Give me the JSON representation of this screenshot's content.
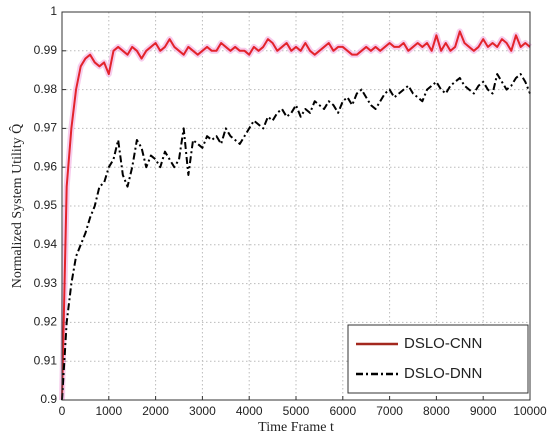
{
  "chart_data": {
    "type": "line",
    "xlabel": "Time Frame t",
    "ylabel": "Normalized System Utility Q̂",
    "x": [
      0,
      100,
      200,
      300,
      400,
      500,
      600,
      700,
      800,
      900,
      1000,
      1100,
      1200,
      1300,
      1400,
      1500,
      1600,
      1700,
      1800,
      1900,
      2000,
      2100,
      2200,
      2300,
      2400,
      2500,
      2600,
      2700,
      2800,
      2900,
      3000,
      3100,
      3200,
      3300,
      3400,
      3500,
      3600,
      3700,
      3800,
      3900,
      4000,
      4100,
      4200,
      4300,
      4400,
      4500,
      4600,
      4700,
      4800,
      4900,
      5000,
      5100,
      5200,
      5300,
      5400,
      5500,
      5600,
      5700,
      5800,
      5900,
      6000,
      6100,
      6200,
      6300,
      6400,
      6500,
      6600,
      6700,
      6800,
      6900,
      7000,
      7100,
      7200,
      7300,
      7400,
      7500,
      7600,
      7700,
      7800,
      7900,
      8000,
      8100,
      8200,
      8300,
      8400,
      8500,
      8600,
      8700,
      8800,
      8900,
      9000,
      9100,
      9200,
      9300,
      9400,
      9500,
      9600,
      9700,
      9800,
      9900,
      10000
    ],
    "series": [
      {
        "name": "DSLO-CNN",
        "color": "#e3232c",
        "legend_color": "#a3281e",
        "dash": false,
        "values": [
          0.9,
          0.955,
          0.97,
          0.98,
          0.986,
          0.988,
          0.989,
          0.987,
          0.986,
          0.987,
          0.984,
          0.99,
          0.991,
          0.99,
          0.989,
          0.991,
          0.99,
          0.988,
          0.99,
          0.991,
          0.992,
          0.99,
          0.991,
          0.993,
          0.991,
          0.99,
          0.989,
          0.991,
          0.99,
          0.989,
          0.99,
          0.991,
          0.99,
          0.99,
          0.992,
          0.991,
          0.99,
          0.991,
          0.99,
          0.99,
          0.989,
          0.991,
          0.99,
          0.991,
          0.993,
          0.992,
          0.99,
          0.991,
          0.992,
          0.99,
          0.991,
          0.99,
          0.992,
          0.99,
          0.989,
          0.99,
          0.991,
          0.992,
          0.99,
          0.991,
          0.991,
          0.99,
          0.989,
          0.989,
          0.99,
          0.991,
          0.99,
          0.991,
          0.99,
          0.991,
          0.992,
          0.991,
          0.991,
          0.992,
          0.99,
          0.991,
          0.992,
          0.991,
          0.992,
          0.99,
          0.994,
          0.99,
          0.992,
          0.99,
          0.991,
          0.995,
          0.992,
          0.991,
          0.99,
          0.991,
          0.993,
          0.991,
          0.992,
          0.991,
          0.993,
          0.992,
          0.99,
          0.994,
          0.991,
          0.992,
          0.991
        ]
      },
      {
        "name": "DSLO-DNN",
        "color": "#000000",
        "dash": true,
        "values": [
          0.9,
          0.92,
          0.93,
          0.937,
          0.94,
          0.943,
          0.947,
          0.95,
          0.955,
          0.956,
          0.96,
          0.962,
          0.967,
          0.958,
          0.955,
          0.96,
          0.967,
          0.965,
          0.96,
          0.963,
          0.962,
          0.96,
          0.964,
          0.962,
          0.96,
          0.962,
          0.97,
          0.958,
          0.967,
          0.966,
          0.965,
          0.968,
          0.967,
          0.968,
          0.966,
          0.97,
          0.968,
          0.967,
          0.966,
          0.968,
          0.97,
          0.972,
          0.971,
          0.97,
          0.973,
          0.972,
          0.974,
          0.975,
          0.973,
          0.974,
          0.976,
          0.973,
          0.975,
          0.974,
          0.977,
          0.976,
          0.975,
          0.977,
          0.976,
          0.974,
          0.977,
          0.978,
          0.976,
          0.979,
          0.98,
          0.978,
          0.976,
          0.975,
          0.977,
          0.979,
          0.98,
          0.978,
          0.979,
          0.98,
          0.981,
          0.979,
          0.978,
          0.977,
          0.98,
          0.981,
          0.982,
          0.98,
          0.979,
          0.981,
          0.982,
          0.983,
          0.981,
          0.98,
          0.979,
          0.981,
          0.982,
          0.98,
          0.979,
          0.984,
          0.982,
          0.98,
          0.981,
          0.983,
          0.984,
          0.982,
          0.979
        ]
      }
    ],
    "xlim": [
      0,
      10000
    ],
    "xticks": [
      0,
      1000,
      2000,
      3000,
      4000,
      5000,
      6000,
      7000,
      8000,
      9000,
      10000
    ],
    "ylim": [
      0.9,
      1
    ],
    "yticks": [
      0.9,
      0.91,
      0.92,
      0.93,
      0.94,
      0.95,
      0.96,
      0.97,
      0.98,
      0.99,
      1
    ],
    "grid": true,
    "legend": "lower right"
  }
}
